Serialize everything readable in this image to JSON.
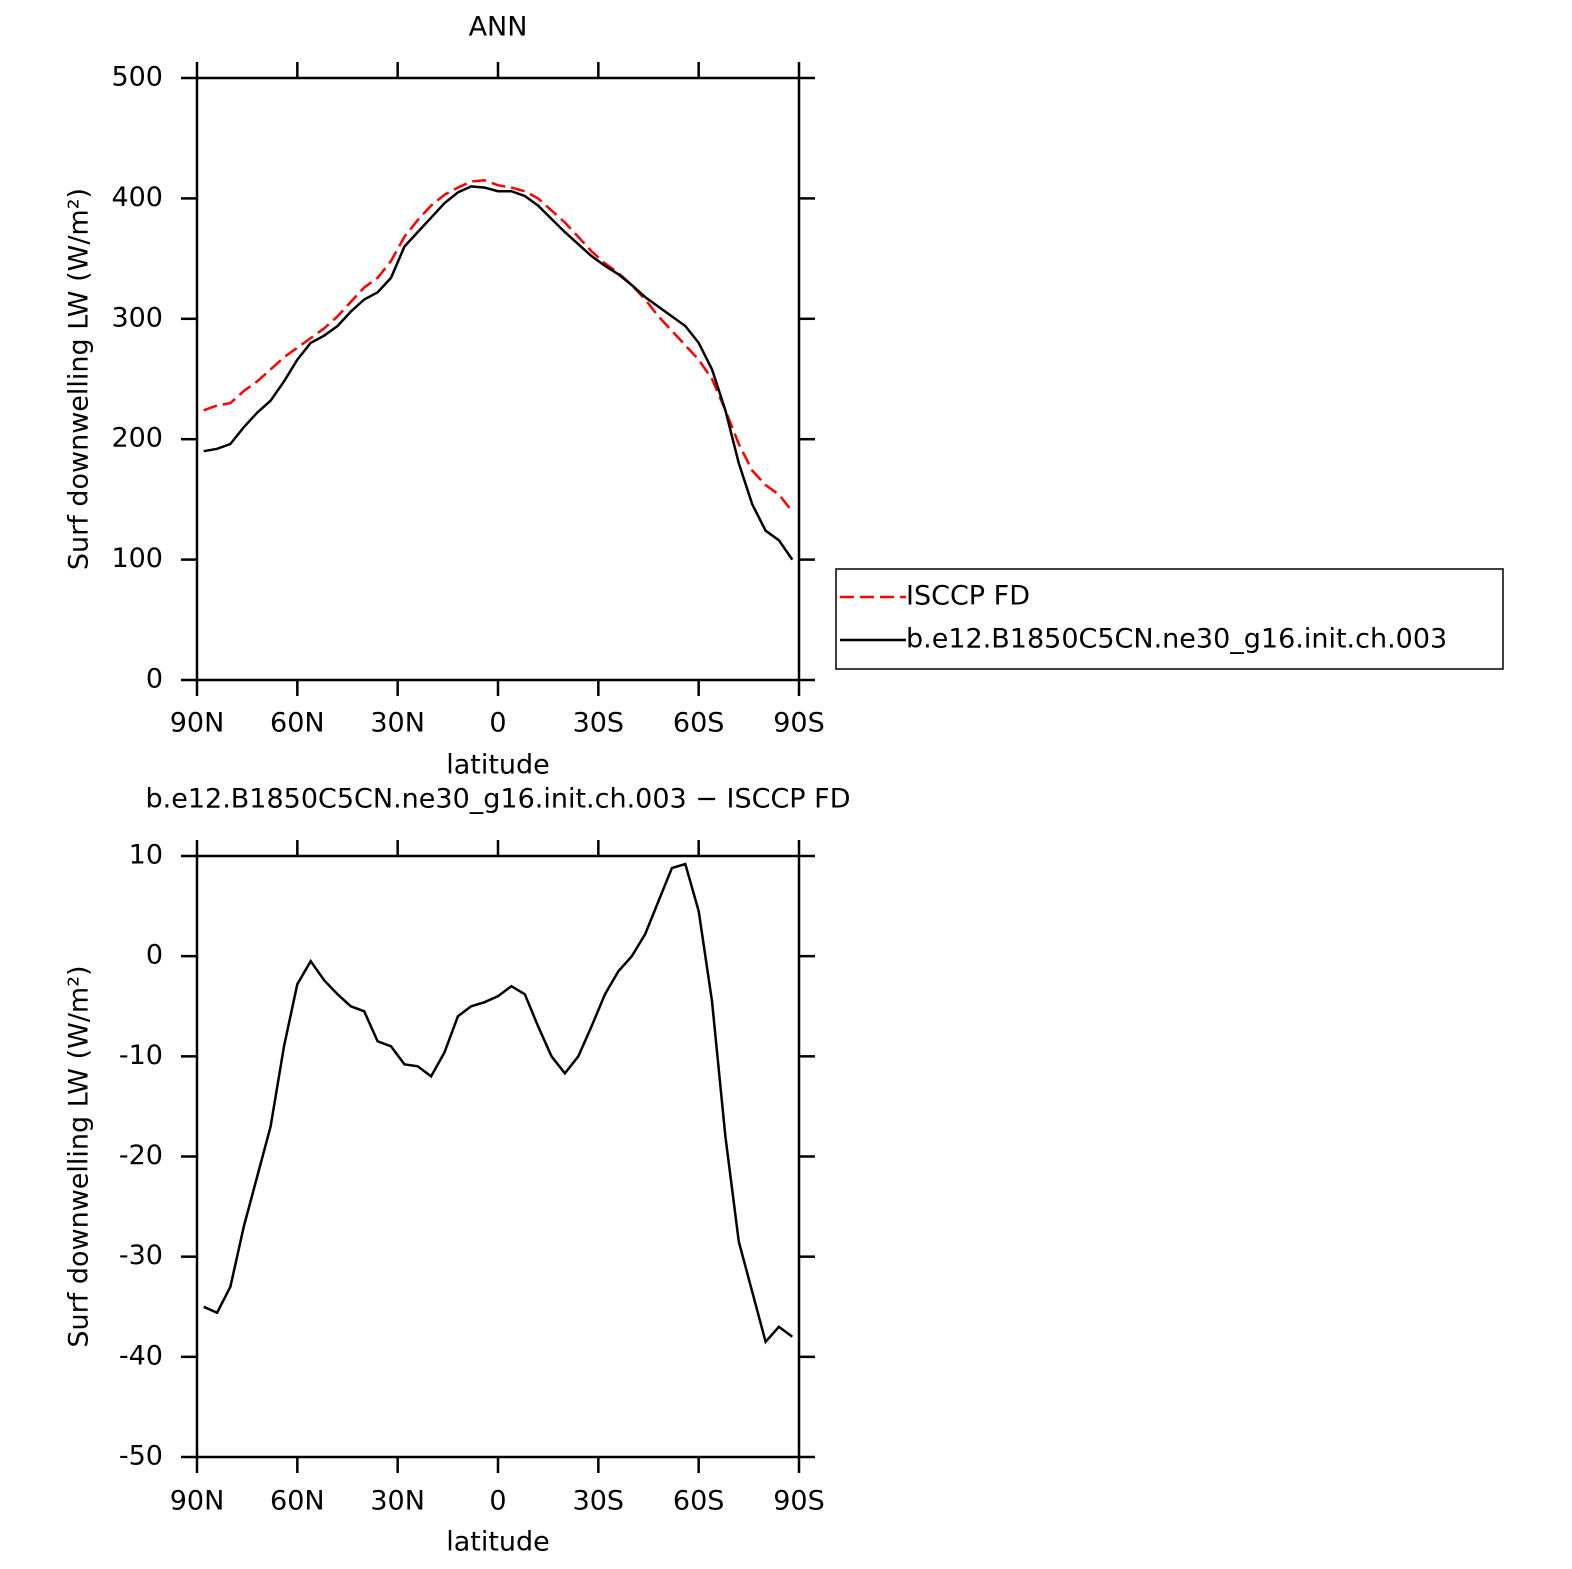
{
  "chart_data": [
    {
      "type": "line",
      "title": "ANN",
      "xlabel": "latitude",
      "ylabel": "Surf downwelling LW (W/m²)",
      "x": [
        88,
        84,
        80,
        76,
        72,
        68,
        64,
        60,
        56,
        52,
        48,
        44,
        40,
        36,
        32,
        28,
        24,
        20,
        16,
        12,
        8,
        4,
        0,
        -4,
        -8,
        -12,
        -16,
        -20,
        -24,
        -28,
        -32,
        -36,
        -40,
        -44,
        -48,
        -52,
        -56,
        -60,
        -64,
        -68,
        -72,
        -76,
        -80,
        -84,
        -88
      ],
      "series": [
        {
          "name": "ISCCP FD",
          "color": "#ff0000",
          "line_style": "dashed",
          "values": [
            224,
            228,
            230,
            240,
            248,
            258,
            268,
            276,
            284,
            292,
            302,
            314,
            326,
            334,
            348,
            368,
            382,
            394,
            403,
            409,
            414,
            415,
            411,
            409,
            406,
            400,
            390,
            380,
            368,
            356,
            346,
            338,
            328,
            316,
            302,
            290,
            278,
            266,
            250,
            224,
            196,
            174,
            162,
            154,
            140
          ]
        },
        {
          "name": "b.e12.B1850C5CN.ne30_g16.init.ch.003",
          "color": "#000000",
          "line_style": "solid",
          "values": [
            190,
            192,
            196,
            210,
            222,
            232,
            248,
            266,
            280,
            286,
            294,
            306,
            316,
            322,
            334,
            360,
            372,
            384,
            396,
            405,
            410,
            409,
            406,
            406,
            402,
            394,
            383,
            372,
            362,
            352,
            344,
            337,
            328,
            318,
            310,
            302,
            294,
            280,
            258,
            224,
            180,
            146,
            124,
            116,
            100
          ]
        }
      ],
      "xlim": [
        90,
        -90
      ],
      "xticks": [
        {
          "value": 90,
          "label": "90N"
        },
        {
          "value": 60,
          "label": "60N"
        },
        {
          "value": 30,
          "label": "30N"
        },
        0,
        {
          "value": -30,
          "label": "30S"
        },
        {
          "value": -60,
          "label": "60S"
        },
        {
          "value": -90,
          "label": "90S"
        }
      ],
      "ylim": [
        0,
        500
      ],
      "yticks": [
        0,
        100,
        200,
        300,
        400,
        500
      ],
      "legend": "right"
    },
    {
      "type": "line",
      "title": "b.e12.B1850C5CN.ne30_g16.init.ch.003 − ISCCP FD",
      "xlabel": "latitude",
      "ylabel": "Surf downwelling LW (W/m²)",
      "x": [
        88,
        84,
        80,
        76,
        72,
        68,
        64,
        60,
        56,
        52,
        48,
        44,
        40,
        36,
        32,
        28,
        24,
        20,
        16,
        12,
        8,
        4,
        0,
        -4,
        -8,
        -12,
        -16,
        -20,
        -24,
        -28,
        -32,
        -36,
        -40,
        -44,
        -48,
        -52,
        -56,
        -60,
        -64,
        -68,
        -72,
        -76,
        -80,
        -84,
        -88
      ],
      "color": "#000000",
      "values": [
        -35,
        -35.6,
        -33,
        -27,
        -22,
        -17,
        -9,
        -2.8,
        -0.5,
        -2.4,
        -3.8,
        -5,
        -5.5,
        -8.5,
        -9,
        -10.8,
        -11,
        -12,
        -9.6,
        -6,
        -5,
        -4.6,
        -4,
        -3,
        -3.8,
        -7,
        -10,
        -11.7,
        -10,
        -7,
        -3.8,
        -1.5,
        0,
        2.2,
        5.5,
        8.8,
        9.2,
        4.5,
        -4.5,
        -18,
        -28.5,
        -33.5,
        -38.5,
        -37,
        -38
      ],
      "xlim": [
        90,
        -90
      ],
      "xticks": [
        {
          "value": 90,
          "label": "90N"
        },
        {
          "value": 60,
          "label": "60N"
        },
        {
          "value": 30,
          "label": "30N"
        },
        0,
        {
          "value": -30,
          "label": "30S"
        },
        {
          "value": -60,
          "label": "60S"
        },
        {
          "value": -90,
          "label": "90S"
        }
      ],
      "ylim": [
        -50,
        10
      ],
      "yticks": [
        -50,
        -40,
        -30,
        -20,
        -10,
        0,
        10
      ]
    }
  ]
}
